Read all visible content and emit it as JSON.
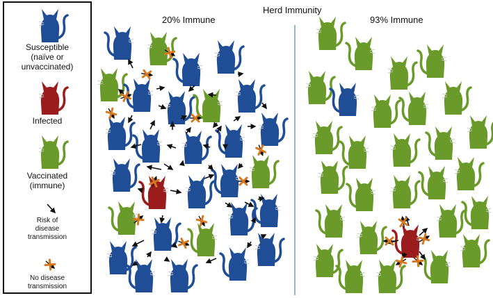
{
  "title": "Herd Immunity",
  "panels": {
    "left_title": "20% Immune",
    "right_title": "93% Immune"
  },
  "legend": {
    "susceptible_label": "Susceptible",
    "susceptible_sub1": "(naïve or",
    "susceptible_sub2": "unvaccinated)",
    "infected_label": "Infected",
    "vaccinated_label": "Vaccinated",
    "vaccinated_sub": "(immune)",
    "risk_1": "Risk of",
    "risk_2": "disease",
    "risk_3": "transmission",
    "no_1": "No disease",
    "no_2": "transmission"
  },
  "colors": {
    "susceptible": "#1f4e96",
    "infected": "#9b1c1c",
    "vaccinated": "#6a9a2a",
    "divider": "#5b7fb5"
  }
}
